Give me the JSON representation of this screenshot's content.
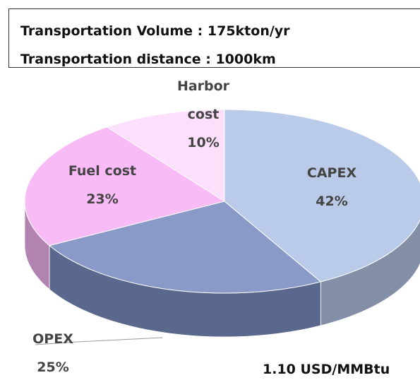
{
  "header": {
    "lines": [
      "Transportation Volume  :  175kton/yr",
      "Transportation distance : 1000km"
    ]
  },
  "chart_data": {
    "type": "pie",
    "categories": [
      "CAPEX",
      "OPEX",
      "Fuel cost",
      "Harbor cost"
    ],
    "values": [
      42,
      25,
      23,
      10
    ],
    "value_labels": [
      "42%",
      "25%",
      "23%",
      "10%"
    ],
    "colors": [
      "#b4c7e7",
      "#7f91c4",
      "#f7b5f5",
      "#fcdcfb"
    ],
    "note": "1.10 USD/MMBtu"
  }
}
